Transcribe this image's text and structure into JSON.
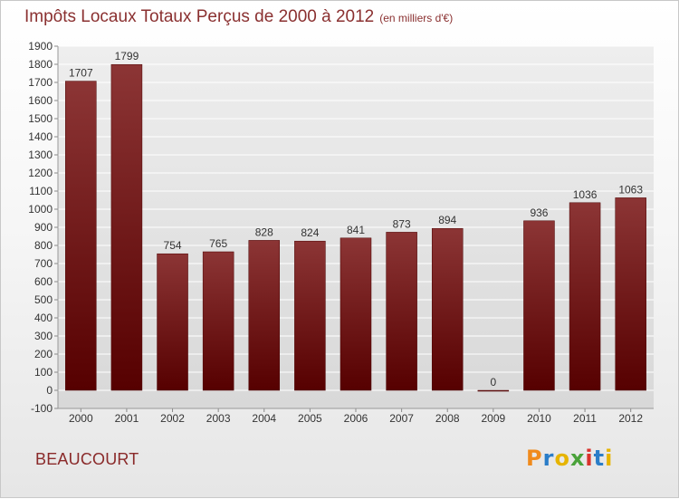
{
  "header": {
    "title": "Impôts Locaux Totaux Perçus de 2000 à 2012",
    "unit": "(en milliers d'€)"
  },
  "footer": {
    "location": "BEAUCOURT",
    "brand": "Proxiti"
  },
  "colors": {
    "title": "#8a3030",
    "bar_top": "#8c3535",
    "bar_bottom": "#560000"
  },
  "chart_data": {
    "type": "bar",
    "title": "Impôts Locaux Totaux Perçus de 2000 à 2012",
    "xlabel": "",
    "ylabel": "",
    "categories": [
      "2000",
      "2001",
      "2002",
      "2003",
      "2004",
      "2005",
      "2006",
      "2007",
      "2008",
      "2009",
      "2010",
      "2011",
      "2012"
    ],
    "values": [
      1707,
      1799,
      754,
      765,
      828,
      824,
      841,
      873,
      894,
      0,
      936,
      1036,
      1063
    ],
    "value_labels": [
      "1707",
      "1799",
      "754",
      "765",
      "828",
      "824",
      "841",
      "873",
      "894",
      "0",
      "936",
      "1036",
      "1063"
    ],
    "ylim": [
      -100,
      1900
    ],
    "yticks": [
      -100,
      0,
      100,
      200,
      300,
      400,
      500,
      600,
      700,
      800,
      900,
      1000,
      1100,
      1200,
      1300,
      1400,
      1500,
      1600,
      1700,
      1800,
      1900
    ],
    "grid": true,
    "legend": "none"
  }
}
